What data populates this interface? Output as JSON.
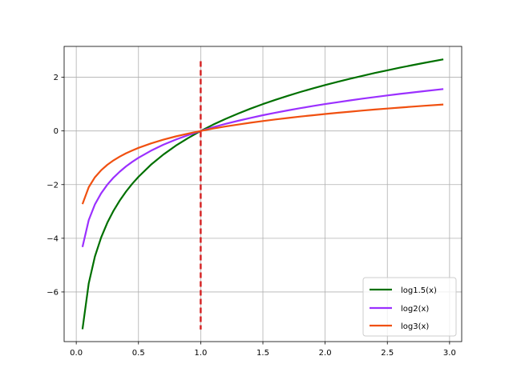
{
  "chart_data": {
    "type": "line",
    "title": "",
    "xlabel": "",
    "ylabel": "",
    "xlim": [
      -0.0975,
      3.0975
    ],
    "ylim": [
      -7.85,
      3.15
    ],
    "grid": true,
    "legend_position": "lower-right",
    "x_ticks": [
      0.0,
      0.5,
      1.0,
      1.5,
      2.0,
      2.5,
      3.0
    ],
    "x_tick_labels": [
      "0.0",
      "0.5",
      "1.0",
      "1.5",
      "2.0",
      "2.5",
      "3.0"
    ],
    "y_ticks": [
      -6,
      -4,
      -2,
      0,
      2
    ],
    "y_tick_labels": [
      "−6",
      "−4",
      "−2",
      "0",
      "2"
    ],
    "x": [
      0.05,
      0.1,
      0.15,
      0.2,
      0.25,
      0.3,
      0.35,
      0.4,
      0.45,
      0.5,
      0.6,
      0.7,
      0.8,
      0.9,
      1.0,
      1.1,
      1.2,
      1.3,
      1.4,
      1.5,
      1.6,
      1.7,
      1.8,
      1.9,
      2.0,
      2.1,
      2.2,
      2.3,
      2.4,
      2.5,
      2.6,
      2.7,
      2.8,
      2.95
    ],
    "series": [
      {
        "name": "log1.5(x)",
        "color": "#007000",
        "style": "solid",
        "values": [
          -7.388,
          -5.679,
          -4.679,
          -3.969,
          -3.419,
          -2.969,
          -2.589,
          -2.26,
          -1.969,
          -1.71,
          -1.26,
          -0.88,
          -0.55,
          -0.26,
          0.0,
          0.235,
          0.45,
          0.647,
          0.83,
          1.0,
          1.159,
          1.309,
          1.45,
          1.583,
          1.71,
          1.83,
          1.945,
          2.054,
          2.159,
          2.26,
          2.357,
          2.45,
          2.539,
          2.668
        ]
      },
      {
        "name": "log2(x)",
        "color": "#9b30ff",
        "style": "solid",
        "values": [
          -4.322,
          -3.322,
          -2.737,
          -2.322,
          -2.0,
          -1.737,
          -1.515,
          -1.322,
          -1.152,
          -1.0,
          -0.737,
          -0.515,
          -0.322,
          -0.152,
          0.0,
          0.138,
          0.263,
          0.379,
          0.485,
          0.585,
          0.678,
          0.766,
          0.848,
          0.926,
          1.0,
          1.07,
          1.138,
          1.202,
          1.263,
          1.322,
          1.379,
          1.433,
          1.485,
          1.561
        ]
      },
      {
        "name": "log3(x)",
        "color": "#f05010",
        "style": "solid",
        "values": [
          -2.727,
          -2.096,
          -1.727,
          -1.465,
          -1.262,
          -1.096,
          -0.956,
          -0.834,
          -0.727,
          -0.631,
          -0.465,
          -0.325,
          -0.203,
          -0.096,
          0.0,
          0.087,
          0.166,
          0.239,
          0.306,
          0.369,
          0.428,
          0.483,
          0.535,
          0.584,
          0.631,
          0.675,
          0.718,
          0.758,
          0.797,
          0.834,
          0.87,
          0.904,
          0.937,
          0.985
        ]
      }
    ],
    "vline": {
      "x": 1.0,
      "y_range": [
        -7.4,
        2.6
      ],
      "color": "#d62728",
      "style": "dashed"
    }
  }
}
